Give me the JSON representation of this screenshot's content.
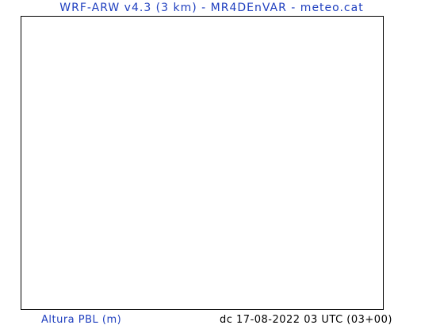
{
  "header": {
    "title": "WRF-ARW v4.3 (3 km) - MR4DEnVAR - meteo.cat"
  },
  "footer": {
    "variable_label": "Altura PBL (m)",
    "run_label": "dc 17-08-2022 03 UTC (03+00)"
  },
  "colors": {
    "title_text": "#1f3fbf",
    "variable_text": "#1f3fbf",
    "run_text": "#000000",
    "frame_border": "#000000",
    "background": "#ffffff"
  }
}
